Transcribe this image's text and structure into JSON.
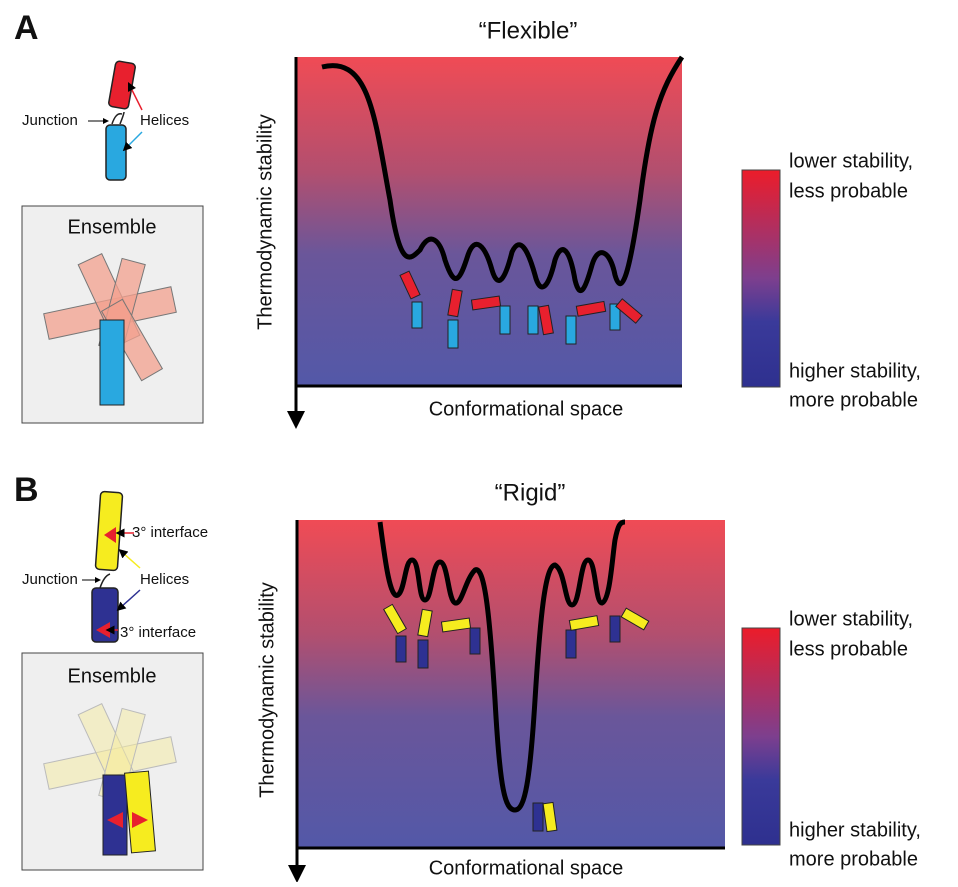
{
  "panels": [
    {
      "label": "A",
      "title": "“Flexible”",
      "schematic": {
        "junction": "Junction",
        "helices": "Helices"
      },
      "ensemble": "Ensemble",
      "y_axis": "Thermodynamic stability",
      "x_axis": "Conformational space",
      "scale": {
        "top": [
          "lower stability,",
          "less probable"
        ],
        "bottom": [
          "higher stability,",
          "more probable"
        ]
      }
    },
    {
      "label": "B",
      "title": "“Rigid”",
      "schematic": {
        "junction": "Junction",
        "helices": "Helices",
        "interfaces": [
          "3° interface",
          "3° interface"
        ]
      },
      "ensemble": "Ensemble",
      "y_axis": "Thermodynamic stability",
      "x_axis": "Conformational space",
      "scale": {
        "top": [
          "lower stability,",
          "less probable"
        ],
        "bottom": [
          "higher stability,",
          "more probable"
        ]
      }
    }
  ]
}
